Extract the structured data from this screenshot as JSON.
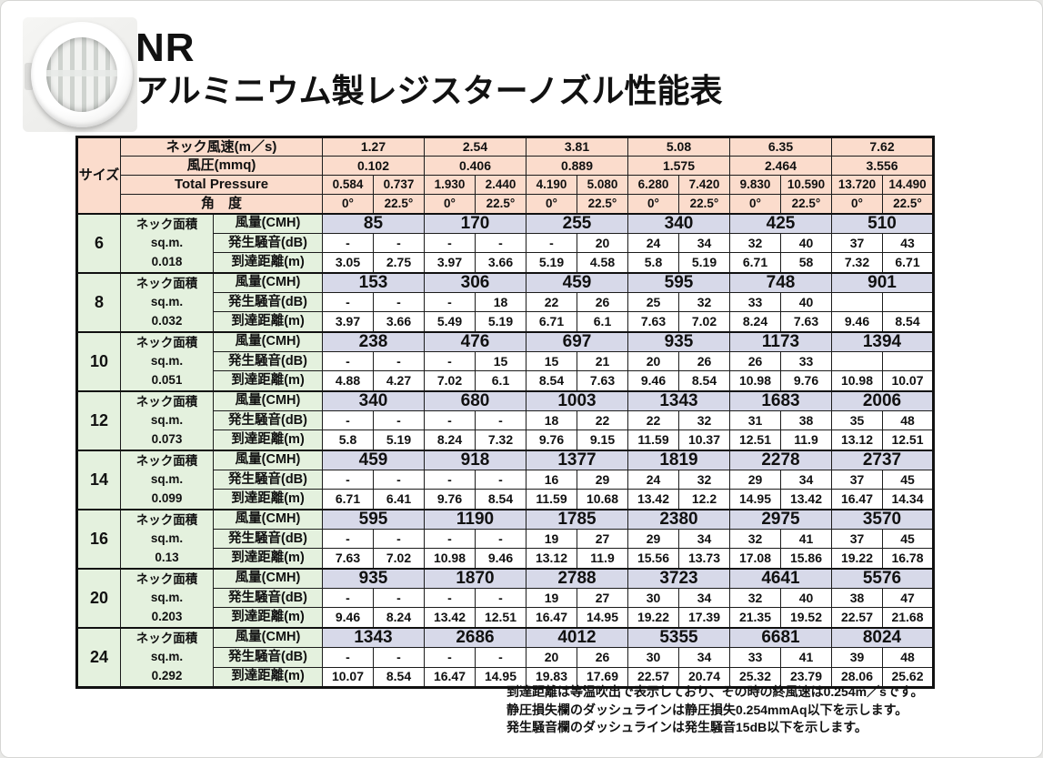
{
  "header": {
    "product_code": "NR",
    "title": "アルミニウム製レジスターノズル性能表"
  },
  "colors": {
    "header_pink": "#fbdccc",
    "label_green": "#e4f1de",
    "flow_lavender": "#d7d9e9",
    "border": "#111111"
  },
  "table": {
    "size_header": "サイズ",
    "header_rows": [
      {
        "label": "ネック風速(m／s)",
        "span2": true,
        "values": [
          "1.27",
          "2.54",
          "3.81",
          "5.08",
          "6.35",
          "7.62"
        ]
      },
      {
        "label": "風圧(mmq)",
        "span2": true,
        "values": [
          "0.102",
          "0.406",
          "0.889",
          "1.575",
          "2.464",
          "3.556"
        ]
      },
      {
        "label": "Total Pressure",
        "span2": false,
        "values": [
          "0.584",
          "0.737",
          "1.930",
          "2.440",
          "4.190",
          "5.080",
          "6.280",
          "7.420",
          "9.830",
          "10.590",
          "13.720",
          "14.490"
        ]
      },
      {
        "label": "角　度",
        "span2": false,
        "values": [
          "0°",
          "22.5°",
          "0°",
          "22.5°",
          "0°",
          "22.5°",
          "0°",
          "22.5°",
          "0°",
          "22.5°",
          "0°",
          "22.5°"
        ]
      }
    ],
    "row_labels": {
      "neck_area": "ネック面積",
      "sqm": "sq.m.",
      "airflow": "風量(CMH)",
      "noise": "発生騒音(dB)",
      "throw": "到達距離(m)"
    },
    "sizes": [
      {
        "size": "6",
        "area": "0.018",
        "airflow": [
          "85",
          "170",
          "255",
          "340",
          "425",
          "510"
        ],
        "noise": [
          "-",
          "-",
          "-",
          "-",
          "-",
          "20",
          "24",
          "34",
          "32",
          "40",
          "37",
          "43"
        ],
        "throw": [
          "3.05",
          "2.75",
          "3.97",
          "3.66",
          "5.19",
          "4.58",
          "5.8",
          "5.19",
          "6.71",
          "58",
          "7.32",
          "6.71"
        ]
      },
      {
        "size": "8",
        "area": "0.032",
        "airflow": [
          "153",
          "306",
          "459",
          "595",
          "748",
          "901"
        ],
        "noise": [
          "-",
          "-",
          "-",
          "18",
          "22",
          "26",
          "25",
          "32",
          "33",
          "40",
          "",
          ""
        ],
        "throw": [
          "3.97",
          "3.66",
          "5.49",
          "5.19",
          "6.71",
          "6.1",
          "7.63",
          "7.02",
          "8.24",
          "7.63",
          "9.46",
          "8.54"
        ]
      },
      {
        "size": "10",
        "area": "0.051",
        "airflow": [
          "238",
          "476",
          "697",
          "935",
          "1173",
          "1394"
        ],
        "noise": [
          "-",
          "-",
          "-",
          "15",
          "15",
          "21",
          "20",
          "26",
          "26",
          "33",
          "",
          ""
        ],
        "throw": [
          "4.88",
          "4.27",
          "7.02",
          "6.1",
          "8.54",
          "7.63",
          "9.46",
          "8.54",
          "10.98",
          "9.76",
          "10.98",
          "10.07"
        ]
      },
      {
        "size": "12",
        "area": "0.073",
        "airflow": [
          "340",
          "680",
          "1003",
          "1343",
          "1683",
          "2006"
        ],
        "noise": [
          "-",
          "-",
          "-",
          "-",
          "18",
          "22",
          "22",
          "32",
          "31",
          "38",
          "35",
          "48"
        ],
        "throw": [
          "5.8",
          "5.19",
          "8.24",
          "7.32",
          "9.76",
          "9.15",
          "11.59",
          "10.37",
          "12.51",
          "11.9",
          "13.12",
          "12.51"
        ]
      },
      {
        "size": "14",
        "area": "0.099",
        "airflow": [
          "459",
          "918",
          "1377",
          "1819",
          "2278",
          "2737"
        ],
        "noise": [
          "-",
          "-",
          "-",
          "-",
          "16",
          "29",
          "24",
          "32",
          "29",
          "34",
          "37",
          "45"
        ],
        "throw": [
          "6.71",
          "6.41",
          "9.76",
          "8.54",
          "11.59",
          "10.68",
          "13.42",
          "12.2",
          "14.95",
          "13.42",
          "16.47",
          "14.34"
        ]
      },
      {
        "size": "16",
        "area": "0.13",
        "airflow": [
          "595",
          "1190",
          "1785",
          "2380",
          "2975",
          "3570"
        ],
        "noise": [
          "-",
          "-",
          "-",
          "-",
          "19",
          "27",
          "29",
          "34",
          "32",
          "41",
          "37",
          "45"
        ],
        "throw": [
          "7.63",
          "7.02",
          "10.98",
          "9.46",
          "13.12",
          "11.9",
          "15.56",
          "13.73",
          "17.08",
          "15.86",
          "19.22",
          "16.78"
        ]
      },
      {
        "size": "20",
        "area": "0.203",
        "airflow": [
          "935",
          "1870",
          "2788",
          "3723",
          "4641",
          "5576"
        ],
        "noise": [
          "-",
          "-",
          "-",
          "-",
          "19",
          "27",
          "30",
          "34",
          "32",
          "40",
          "38",
          "47"
        ],
        "throw": [
          "9.46",
          "8.24",
          "13.42",
          "12.51",
          "16.47",
          "14.95",
          "19.22",
          "17.39",
          "21.35",
          "19.52",
          "22.57",
          "21.68"
        ]
      },
      {
        "size": "24",
        "area": "0.292",
        "airflow": [
          "1343",
          "2686",
          "4012",
          "5355",
          "6681",
          "8024"
        ],
        "noise": [
          "-",
          "-",
          "-",
          "-",
          "20",
          "26",
          "30",
          "34",
          "33",
          "41",
          "39",
          "48"
        ],
        "throw": [
          "10.07",
          "8.54",
          "16.47",
          "14.95",
          "19.83",
          "17.69",
          "22.57",
          "20.74",
          "25.32",
          "23.79",
          "28.06",
          "25.62"
        ]
      }
    ]
  },
  "notes": [
    "到達距離は等温吹出で表示しており、その時の終風速は0.254m／sです。",
    "静圧損失欄のダッシュラインは静圧損失0.254mmAq以下を示します。",
    "発生騒音欄のダッシュラインは発生騒音15dB以下を示します。"
  ]
}
